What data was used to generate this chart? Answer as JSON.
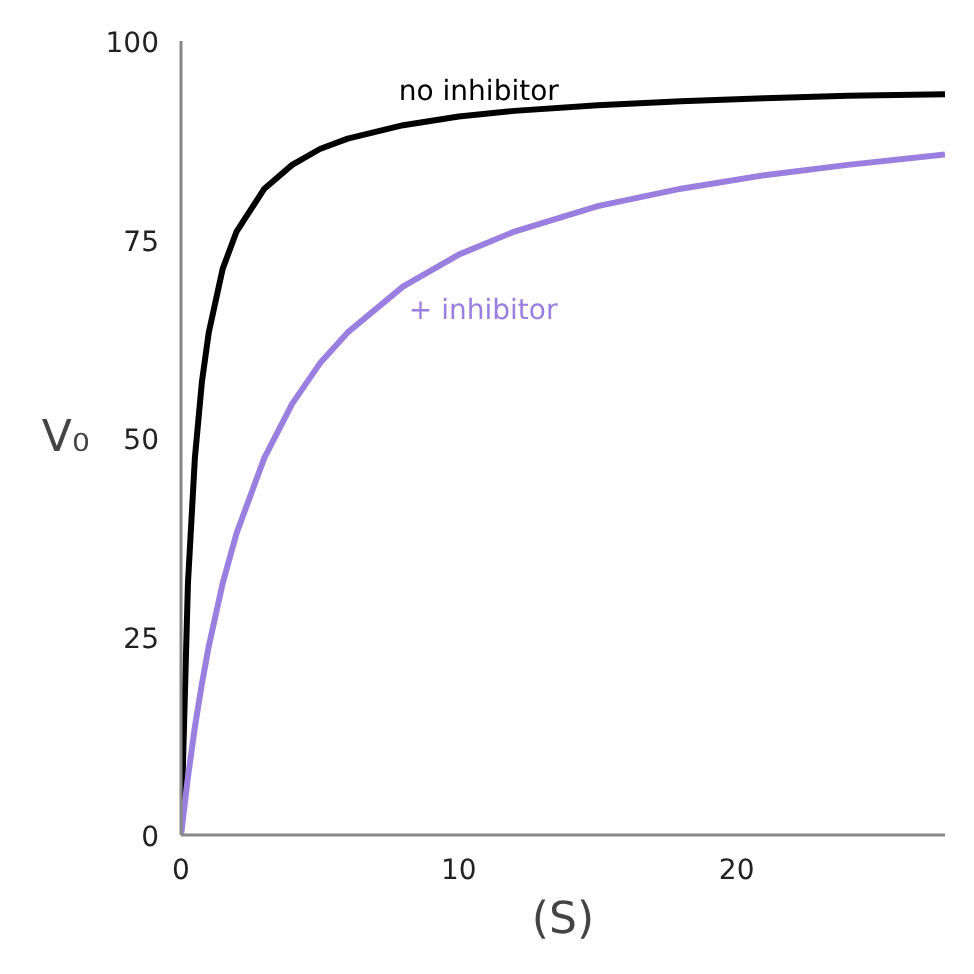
{
  "chart_data": {
    "type": "line",
    "xlabel": "(S)",
    "ylabel": "V₀",
    "x": [
      0,
      0.25,
      0.5,
      0.75,
      1,
      1.5,
      2,
      3,
      4,
      5,
      6,
      8,
      10,
      12,
      15,
      18,
      21,
      24,
      27.5
    ],
    "series": [
      {
        "name": "no inhibitor",
        "color": "#000000",
        "values": [
          0,
          31.7,
          47.5,
          57,
          63.3,
          71.3,
          76,
          81.4,
          84.4,
          86.4,
          87.7,
          89.4,
          90.5,
          91.2,
          91.9,
          92.4,
          92.8,
          93.1,
          93.3
        ]
      },
      {
        "name": "+ inhibitor",
        "color": "#9a7fe0",
        "values": [
          0,
          7.3,
          13.6,
          19,
          23.8,
          31.7,
          38,
          47.5,
          54.3,
          59.4,
          63.3,
          69.1,
          73.1,
          76,
          79.2,
          81.4,
          83.1,
          84.4,
          85.7
        ]
      }
    ],
    "xlim": [
      0,
      27.5
    ],
    "ylim": [
      0,
      100
    ],
    "xticks": [
      0,
      10,
      20
    ],
    "yticks": [
      0,
      25,
      50,
      75,
      100
    ],
    "grid": false,
    "marker": "none",
    "line_style": "solid"
  }
}
